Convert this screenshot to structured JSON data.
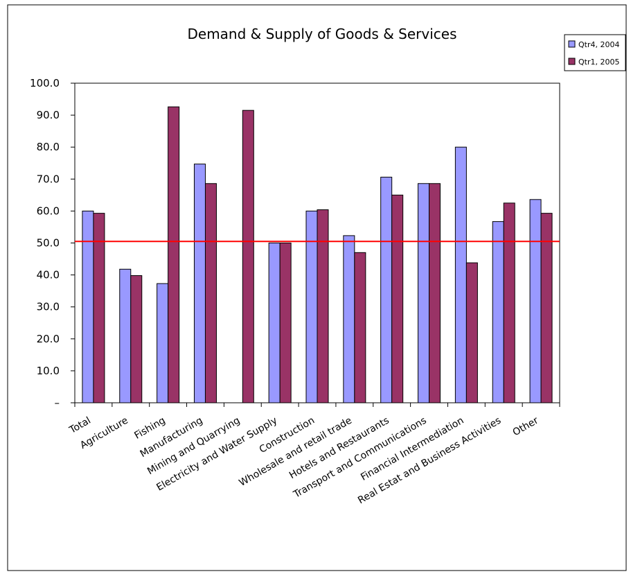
{
  "chart_data": {
    "type": "bar",
    "title": "Demand & Supply of Goods & Services",
    "xlabel": "",
    "ylabel": "",
    "categories": [
      "Total",
      "Agriculture",
      "Fishing",
      "Manufacturing",
      "Mining and Quarrying",
      "Electricity and Water Supply",
      "Construction",
      "Wholesale and retail trade",
      "Hotels and Restaurants",
      "Transport and Communications",
      "Financial Intermediation",
      "Real Estat and Business Activities",
      "Other"
    ],
    "series": [
      {
        "name": "Qtr4, 2004",
        "color": "#9999ff",
        "values": [
          60.0,
          41.8,
          37.3,
          74.7,
          0,
          50.0,
          60.0,
          52.3,
          70.6,
          68.6,
          80.0,
          56.7,
          63.6
        ]
      },
      {
        "name": "Qtr1, 2005",
        "color": "#993366",
        "values": [
          59.3,
          39.8,
          92.6,
          68.6,
          91.5,
          50.0,
          60.4,
          47.0,
          65.0,
          68.6,
          43.8,
          62.5,
          59.3
        ]
      }
    ],
    "ylim": [
      0,
      100
    ],
    "yticks": [
      0,
      10,
      20,
      30,
      40,
      50,
      60,
      70,
      80,
      90,
      100
    ],
    "ytick_labels": [
      "–",
      "10.0",
      "20.0",
      "30.0",
      "40.0",
      "50.0",
      "60.0",
      "70.0",
      "80.0",
      "90.0",
      "100.0"
    ],
    "reference_line": {
      "value": 50.5,
      "color": "#ff0000"
    },
    "grid": false,
    "legend_position": "top-right"
  }
}
